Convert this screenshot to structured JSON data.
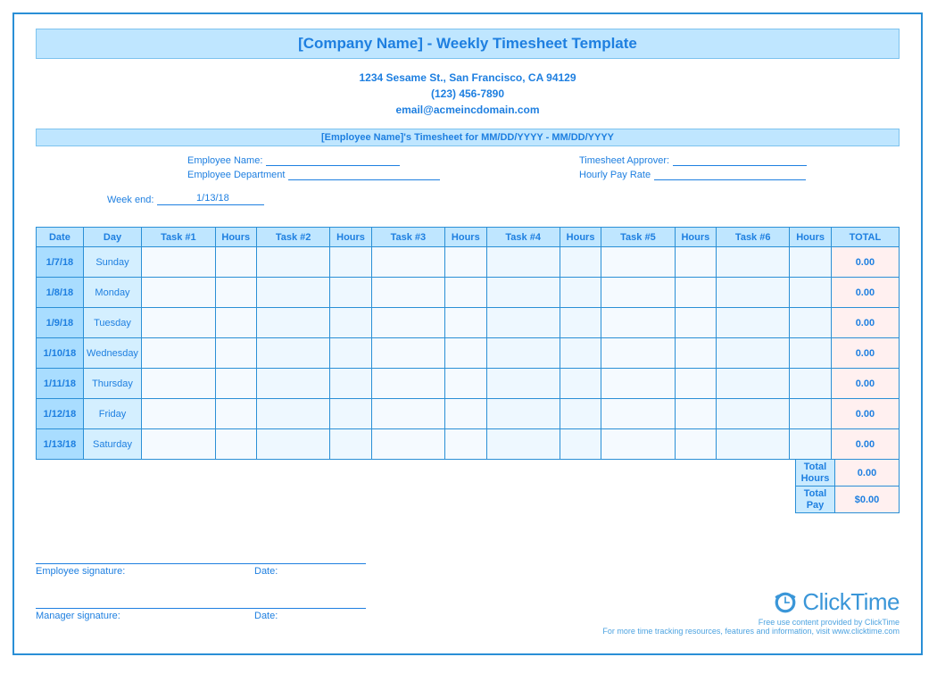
{
  "colors": {
    "border": "#2a8fd6",
    "title_bg": "#bfe6ff",
    "hdr_text": "#1e7fe0",
    "cell_hdr_bg": "#bfe6ff",
    "date_bg": "#a9ddff",
    "day_bg": "#d4efff",
    "total_bg": "#fff0f0"
  },
  "header": {
    "title": "[Company Name] - Weekly Timesheet Template",
    "address": "1234 Sesame St.,  San Francisco, CA 94129",
    "phone": "(123) 456-7890",
    "email": "email@acmeincdomain.com",
    "sub_title": "[Employee Name]'s Timesheet for MM/DD/YYYY - MM/DD/YYYY"
  },
  "meta": {
    "employee_name_label": "Employee Name:",
    "employee_dept_label": "Employee Department",
    "approver_label": "Timesheet Approver:",
    "rate_label": "Hourly Pay Rate",
    "week_end_label": "Week end:",
    "week_end_value": "1/13/18"
  },
  "table": {
    "columns": [
      "Date",
      "Day",
      "Task #1",
      "Hours",
      "Task #2",
      "Hours",
      "Task #3",
      "Hours",
      "Task #4",
      "Hours",
      "Task #5",
      "Hours",
      "Task #6",
      "Hours",
      "TOTAL"
    ],
    "rows": [
      {
        "date": "1/7/18",
        "day": "Sunday",
        "total": "0.00"
      },
      {
        "date": "1/8/18",
        "day": "Monday",
        "total": "0.00"
      },
      {
        "date": "1/9/18",
        "day": "Tuesday",
        "total": "0.00"
      },
      {
        "date": "1/10/18",
        "day": "Wednesday",
        "total": "0.00"
      },
      {
        "date": "1/11/18",
        "day": "Thursday",
        "total": "0.00"
      },
      {
        "date": "1/12/18",
        "day": "Friday",
        "total": "0.00"
      },
      {
        "date": "1/13/18",
        "day": "Saturday",
        "total": "0.00"
      }
    ]
  },
  "totals": {
    "hours_label": "Total Hours",
    "hours_value": "0.00",
    "pay_label": "Total Pay",
    "pay_value": "$0.00"
  },
  "signatures": {
    "employee": "Employee signature:",
    "manager": "Manager signature:",
    "date": "Date:"
  },
  "footer": {
    "brand": "ClickTime",
    "line1": "Free use content provided by ClickTime",
    "line2": "For more time tracking resources, features and information, visit www.clicktime.com"
  }
}
